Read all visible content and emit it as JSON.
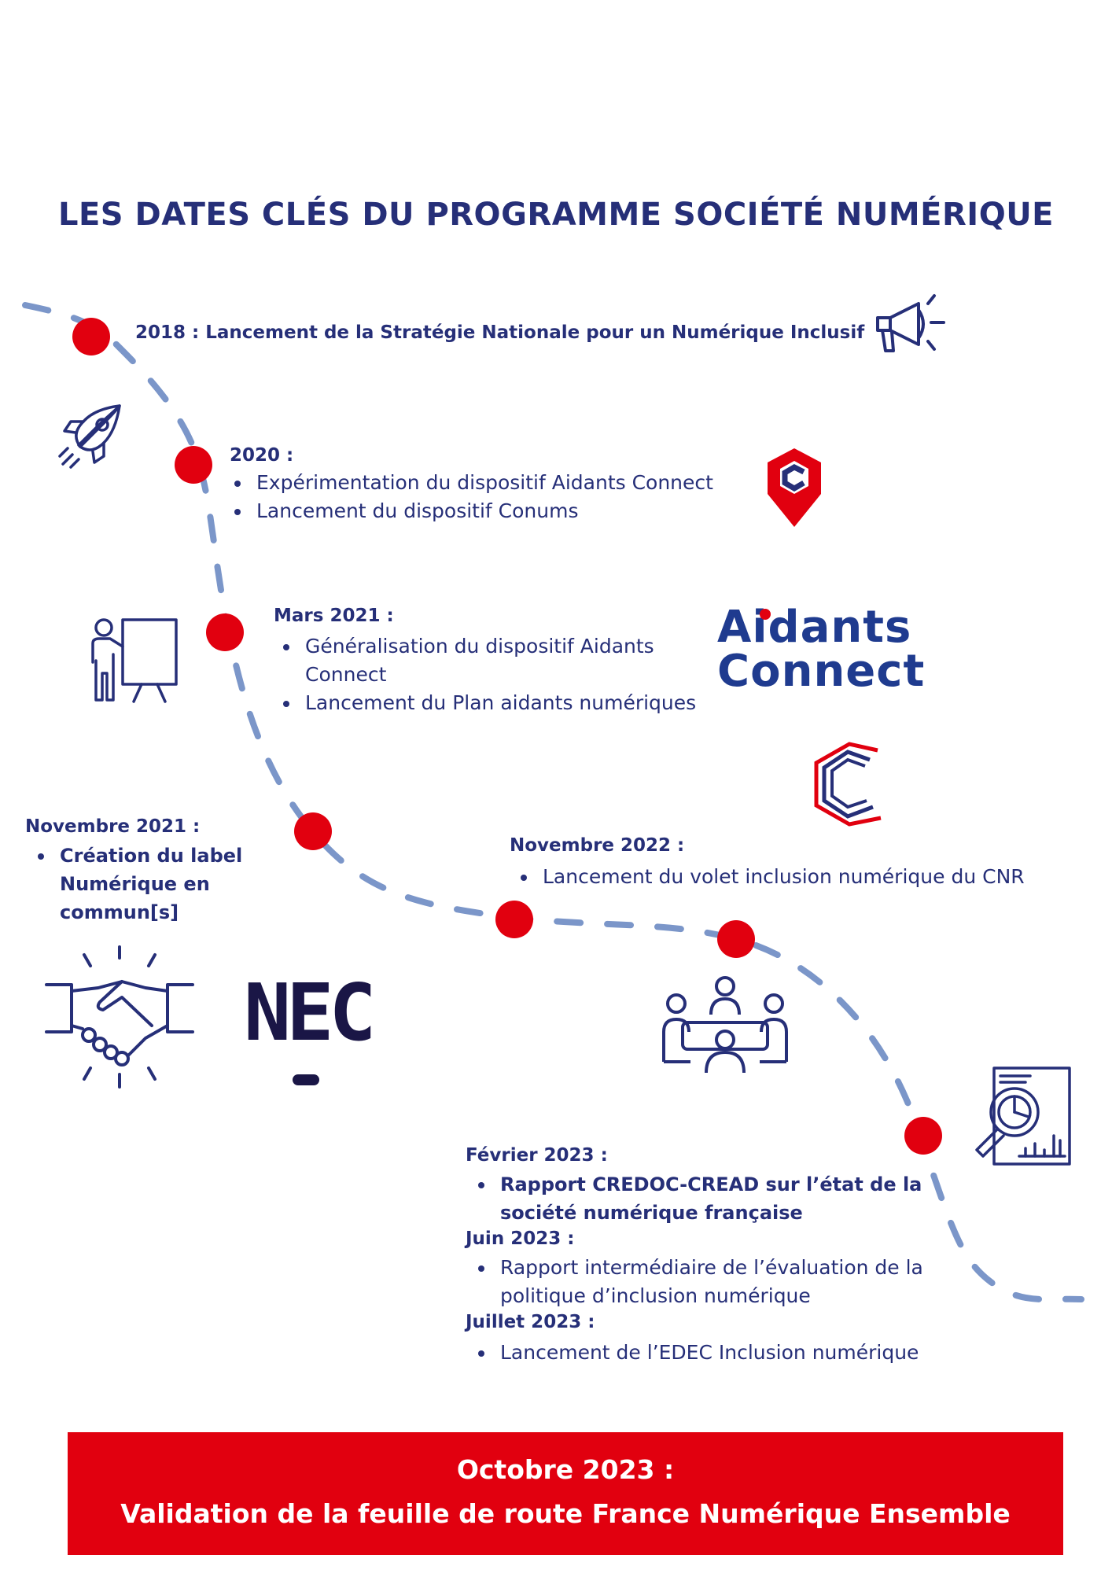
{
  "title": "LES DATES CLÉS DU PROGRAMME SOCIÉTÉ NUMÉRIQUE",
  "colors": {
    "navy": "#262f78",
    "red": "#e1000f",
    "path": "#7b96c9"
  },
  "timeline": [
    {
      "heading": "2018 : Lancement de la Stratégie Nationale pour un Numérique Inclusif",
      "icon": "megaphone-icon",
      "items": []
    },
    {
      "heading": "2020 :",
      "icon": "conums-pin-logo",
      "items": [
        "Expérimentation du dispositif Aidants Connect",
        "Lancement du dispositif Conums"
      ]
    },
    {
      "heading": "Mars 2021 :",
      "icon": "presentation-icon",
      "items": [
        "Généralisation du dispositif Aidants Connect",
        "Lancement du Plan aidants numériques"
      ]
    },
    {
      "heading": "Novembre 2021 :",
      "icon": "handshake-icon",
      "items": [
        "Création du label Numérique en commun[s]"
      ]
    },
    {
      "heading": "Novembre 2022 :",
      "icon": "meeting-icon",
      "items": [
        "Lancement du volet inclusion numérique du CNR"
      ]
    },
    {
      "heading": "Février 2023 :",
      "icon": "report-analysis-icon",
      "items": [
        "Rapport CREDOC-CREAD sur l’état de la société numérique française"
      ]
    },
    {
      "heading": "Juin 2023 :",
      "items": [
        "Rapport intermédiaire de l’évaluation de la politique d’inclusion numérique"
      ]
    },
    {
      "heading": "Juillet 2023 :",
      "items": [
        "Lancement de l’EDEC Inclusion numérique"
      ]
    }
  ],
  "logos": {
    "aidants_line1": "Aidants",
    "aidants_line2": "Connect",
    "nec": "NEC"
  },
  "banner": {
    "line1": "Octobre 2023 :",
    "line2": "Validation de la feuille de route France Numérique Ensemble"
  }
}
